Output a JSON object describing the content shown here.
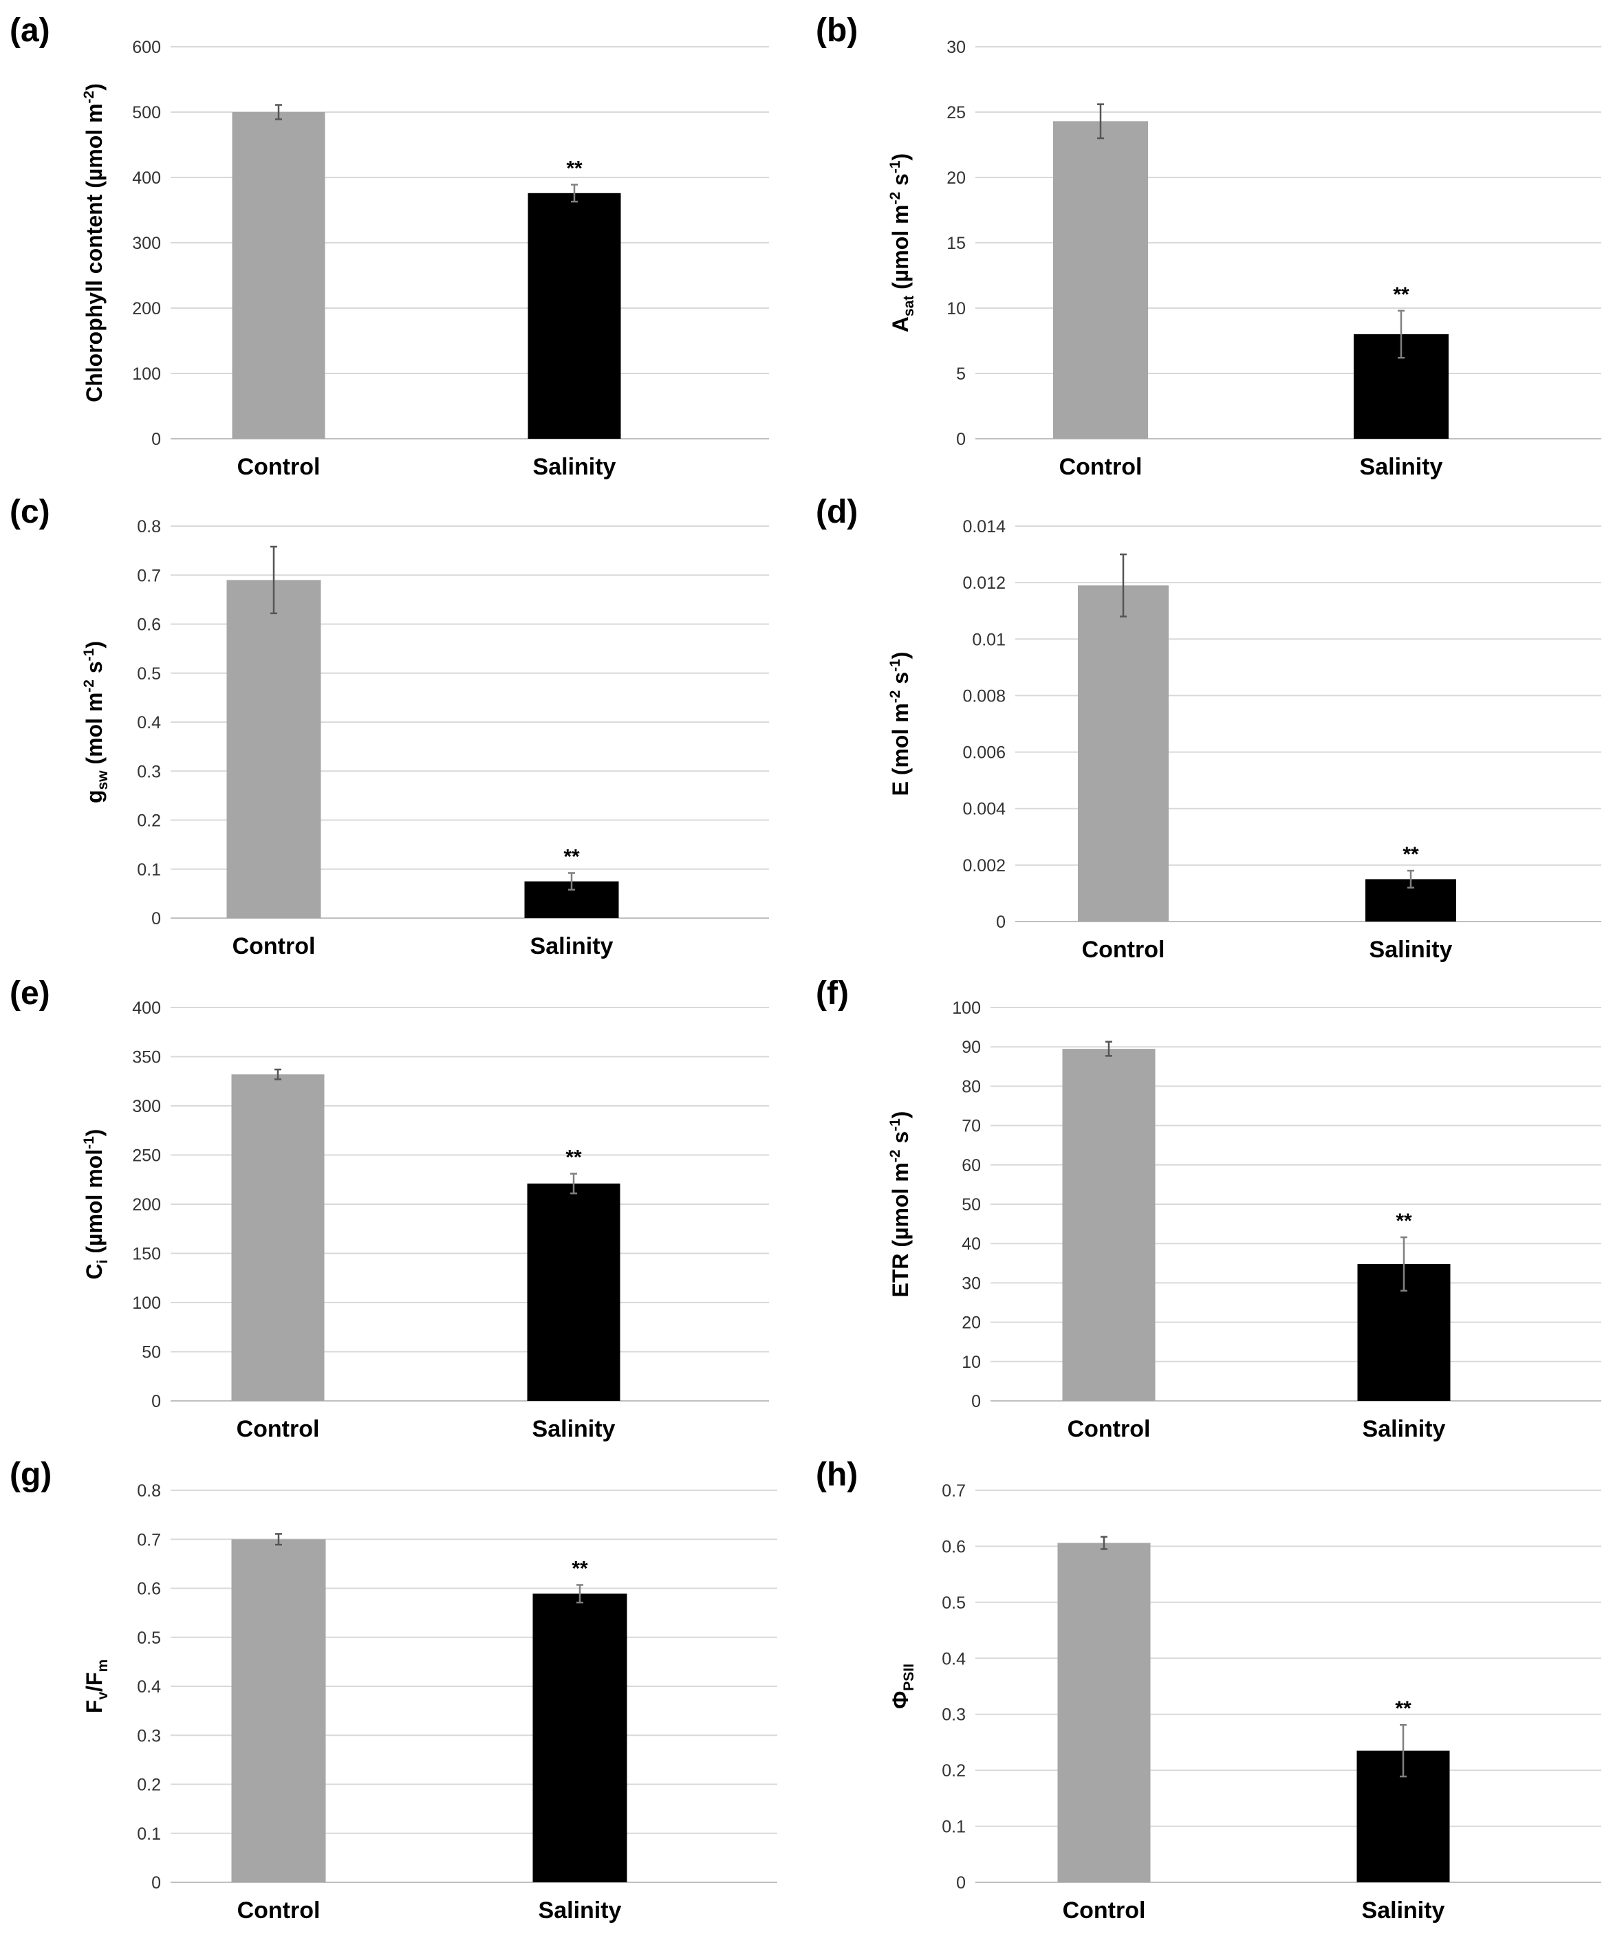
{
  "colors": {
    "control": "#a6a6a6",
    "salinity": "#000000"
  },
  "chart_data": [
    {
      "type": "bar",
      "panel": "(a)",
      "ylabel": "Chlorophyll content (µmol m-2)",
      "ylabel_parts": [
        [
          "Chlorophyll content (µmol m",
          ""
        ],
        [
          "-2",
          "sup"
        ],
        [
          ")",
          ""
        ]
      ],
      "categories": [
        "Control",
        "Salinity"
      ],
      "values": [
        500,
        376
      ],
      "errors": [
        11,
        13
      ],
      "significance": [
        "",
        "**"
      ],
      "ylim": [
        0,
        600
      ],
      "yticks": [
        0,
        100,
        200,
        300,
        400,
        500,
        600
      ],
      "ytick_labels": [
        "0",
        "100",
        "200",
        "300",
        "400",
        "500",
        "600"
      ],
      "grid": true
    },
    {
      "type": "bar",
      "panel": "(b)",
      "ylabel": "Asat (µmol m-2 s-1)",
      "ylabel_parts": [
        [
          "A",
          ""
        ],
        [
          "sat",
          "sub"
        ],
        [
          " (µmol m",
          ""
        ],
        [
          "-2",
          "sup"
        ],
        [
          " s",
          ""
        ],
        [
          "-1",
          "sup"
        ],
        [
          ")",
          ""
        ]
      ],
      "categories": [
        "Control",
        "Salinity"
      ],
      "values": [
        24.3,
        8.0
      ],
      "errors": [
        1.3,
        1.8
      ],
      "significance": [
        "",
        "**"
      ],
      "ylim": [
        0,
        30
      ],
      "yticks": [
        0,
        5,
        10,
        15,
        20,
        25,
        30
      ],
      "ytick_labels": [
        "0",
        "5",
        "10",
        "15",
        "20",
        "25",
        "30"
      ],
      "grid": true
    },
    {
      "type": "bar",
      "panel": "(c)",
      "ylabel": "gsw (mol m-2 s-1)",
      "ylabel_parts": [
        [
          "g",
          ""
        ],
        [
          "sw",
          "sub"
        ],
        [
          " (mol m",
          ""
        ],
        [
          "-2",
          "sup"
        ],
        [
          " s",
          ""
        ],
        [
          "-1",
          "sup"
        ],
        [
          ")",
          ""
        ]
      ],
      "categories": [
        "Control",
        "Salinity"
      ],
      "values": [
        0.69,
        0.075
      ],
      "errors": [
        0.068,
        0.017
      ],
      "significance": [
        "",
        "**"
      ],
      "ylim": [
        0,
        0.8
      ],
      "yticks": [
        0,
        0.1,
        0.2,
        0.3,
        0.4,
        0.5,
        0.6,
        0.7,
        0.8
      ],
      "ytick_labels": [
        "0",
        "0.1",
        "0.2",
        "0.3",
        "0.4",
        "0.5",
        "0.6",
        "0.7",
        "0.8"
      ],
      "grid": true
    },
    {
      "type": "bar",
      "panel": "(d)",
      "ylabel": "E (mol m-2 s-1)",
      "ylabel_parts": [
        [
          "E (mol m",
          ""
        ],
        [
          "-2",
          "sup"
        ],
        [
          " s",
          ""
        ],
        [
          "-1",
          "sup"
        ],
        [
          ")",
          ""
        ]
      ],
      "categories": [
        "Control",
        "Salinity"
      ],
      "values": [
        0.0119,
        0.0015
      ],
      "errors": [
        0.0011,
        0.0003
      ],
      "significance": [
        "",
        "**"
      ],
      "ylim": [
        0,
        0.014
      ],
      "yticks": [
        0,
        0.002,
        0.004,
        0.006,
        0.008,
        0.01,
        0.012,
        0.014
      ],
      "ytick_labels": [
        "0",
        "0.002",
        "0.004",
        "0.006",
        "0.008",
        "0.01",
        "0.012",
        "0.014"
      ],
      "grid": true
    },
    {
      "type": "bar",
      "panel": "(e)",
      "ylabel": "Ci (µmol mol-1)",
      "ylabel_parts": [
        [
          "C",
          ""
        ],
        [
          "i",
          "sub"
        ],
        [
          " (µmol mol",
          ""
        ],
        [
          "-1",
          "sup"
        ],
        [
          ")",
          ""
        ]
      ],
      "categories": [
        "Control",
        "Salinity"
      ],
      "values": [
        332,
        221
      ],
      "errors": [
        5,
        10
      ],
      "significance": [
        "",
        "**"
      ],
      "ylim": [
        0,
        400
      ],
      "yticks": [
        0,
        50,
        100,
        150,
        200,
        250,
        300,
        350,
        400
      ],
      "ytick_labels": [
        "0",
        "50",
        "100",
        "150",
        "200",
        "250",
        "300",
        "350",
        "400"
      ],
      "grid": true
    },
    {
      "type": "bar",
      "panel": "(f)",
      "ylabel": "ETR (µmol m-2 s-1)",
      "ylabel_parts": [
        [
          "ETR (µmol m",
          ""
        ],
        [
          "-2",
          "sup"
        ],
        [
          " s",
          ""
        ],
        [
          "-1",
          "sup"
        ],
        [
          ")",
          ""
        ]
      ],
      "categories": [
        "Control",
        "Salinity"
      ],
      "values": [
        89.5,
        34.8
      ],
      "errors": [
        1.8,
        6.8
      ],
      "significance": [
        "",
        "**"
      ],
      "ylim": [
        0,
        100
      ],
      "yticks": [
        0,
        10,
        20,
        30,
        40,
        50,
        60,
        70,
        80,
        90,
        100
      ],
      "ytick_labels": [
        "0",
        "10",
        "20",
        "30",
        "40",
        "50",
        "60",
        "70",
        "80",
        "90",
        "100"
      ],
      "grid": true
    },
    {
      "type": "bar",
      "panel": "(g)",
      "ylabel": "Fv/Fm",
      "ylabel_parts": [
        [
          "F",
          ""
        ],
        [
          "v",
          "sub"
        ],
        [
          "/F",
          ""
        ],
        [
          "m",
          "sub"
        ]
      ],
      "categories": [
        "Control",
        "Salinity"
      ],
      "values": [
        0.7,
        0.589
      ],
      "errors": [
        0.011,
        0.018
      ],
      "significance": [
        "",
        "**"
      ],
      "ylim": [
        0,
        0.8
      ],
      "yticks": [
        0,
        0.1,
        0.2,
        0.3,
        0.4,
        0.5,
        0.6,
        0.7,
        0.8
      ],
      "ytick_labels": [
        "0",
        "0.1",
        "0.2",
        "0.3",
        "0.4",
        "0.5",
        "0.6",
        "0.7",
        "0.8"
      ],
      "grid": true
    },
    {
      "type": "bar",
      "panel": "(h)",
      "ylabel": "ΦPSII",
      "ylabel_parts": [
        [
          "Φ",
          ""
        ],
        [
          "PSII",
          "sub"
        ]
      ],
      "categories": [
        "Control",
        "Salinity"
      ],
      "values": [
        0.606,
        0.235
      ],
      "errors": [
        0.011,
        0.046
      ],
      "significance": [
        "",
        "**"
      ],
      "ylim": [
        0,
        0.7
      ],
      "yticks": [
        0,
        0.1,
        0.2,
        0.3,
        0.4,
        0.5,
        0.6,
        0.7
      ],
      "ytick_labels": [
        "0",
        "0.1",
        "0.2",
        "0.3",
        "0.4",
        "0.5",
        "0.6",
        "0.7"
      ],
      "grid": true
    }
  ]
}
